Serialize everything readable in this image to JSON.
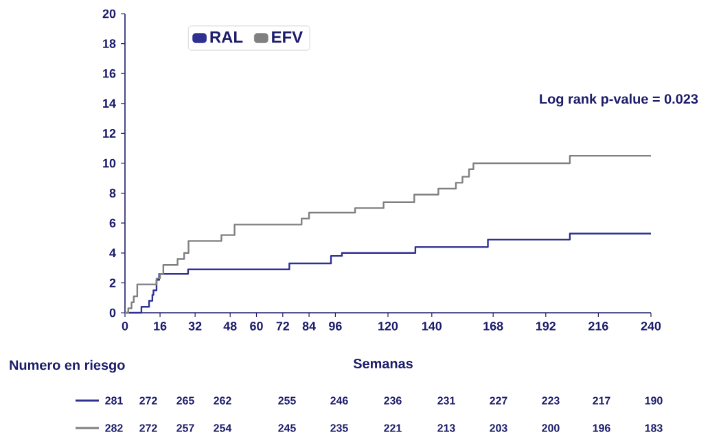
{
  "chart_data": {
    "type": "step",
    "xlabel": "Semanas",
    "xlim": [
      0,
      240
    ],
    "ylim": [
      0,
      20
    ],
    "xticks": [
      0,
      16,
      32,
      48,
      60,
      72,
      84,
      96,
      120,
      140,
      168,
      192,
      216,
      240
    ],
    "yticks": [
      0,
      2,
      4,
      6,
      8,
      10,
      12,
      14,
      16,
      18,
      20
    ],
    "legend": "top left",
    "grid": false,
    "series": [
      {
        "name": "RAL",
        "color": "#2e3192",
        "x": [
          0,
          7.5,
          11,
          12.5,
          13,
          14.4,
          15.6,
          28.8,
          75,
          94,
          99,
          132.5,
          165.6,
          203,
          240
        ],
        "values": [
          0,
          0.4,
          0.8,
          1.2,
          1.5,
          2.2,
          2.6,
          2.9,
          3.3,
          3.8,
          4.0,
          4.4,
          4.9,
          5.3,
          5.3
        ]
      },
      {
        "name": "EFV",
        "color": "#808080",
        "x": [
          0,
          1.5,
          3,
          4,
          5.6,
          14.4,
          16,
          17.5,
          24,
          27,
          29,
          44,
          50,
          80.6,
          84,
          105,
          118,
          132,
          143,
          151,
          154,
          157,
          159,
          203,
          240
        ],
        "values": [
          0,
          0.3,
          0.7,
          1.1,
          1.9,
          2.3,
          2.6,
          3.2,
          3.6,
          4.0,
          4.8,
          5.2,
          5.9,
          6.3,
          6.7,
          7.0,
          7.4,
          7.9,
          8.3,
          8.7,
          9.1,
          9.6,
          10.0,
          10.5,
          10.5
        ]
      }
    ],
    "annotations": [
      "Log rank p-value = 0.023",
      "Numero en riesgo",
      "281",
      "272",
      "265",
      "262",
      "255",
      "246",
      "236",
      "231",
      "227",
      "223",
      "217",
      "190",
      "282",
      "272",
      "257",
      "254",
      "245",
      "235",
      "221",
      "213",
      "203",
      "200",
      "196",
      "183"
    ]
  }
}
